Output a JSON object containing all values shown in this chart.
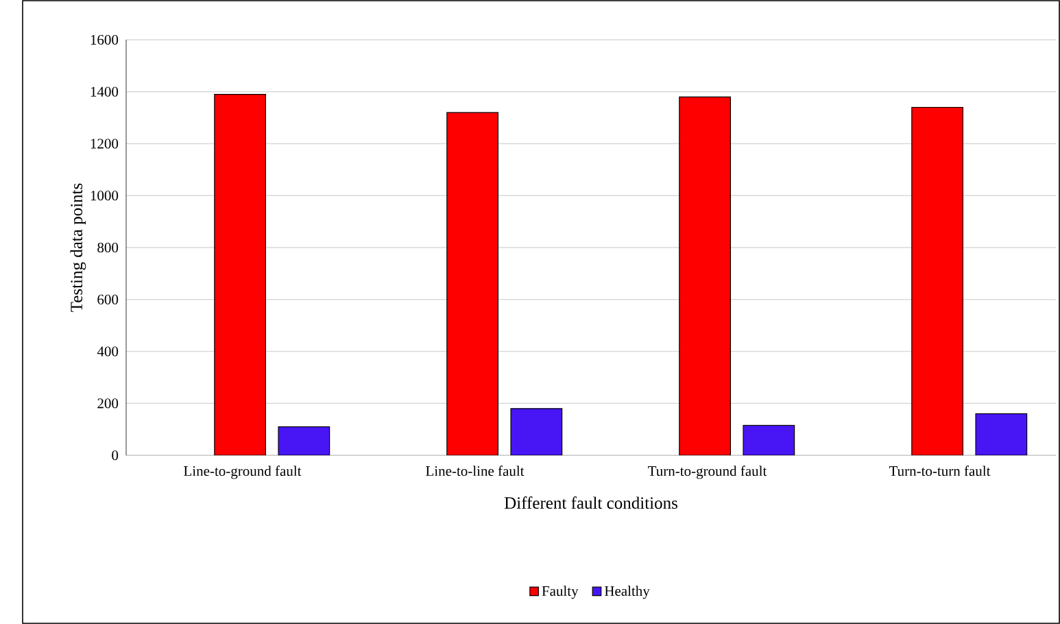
{
  "chart_data": {
    "type": "bar",
    "xlabel": "Different fault conditions",
    "ylabel": "Testing data points",
    "categories": [
      "Line-to-ground fault",
      "Line-to-line fault",
      "Turn-to-ground fault",
      "Turn-to-turn fault"
    ],
    "series": [
      {
        "name": "Faulty",
        "color": "#ff0000",
        "values": [
          1390,
          1320,
          1380,
          1340
        ]
      },
      {
        "name": "Healthy",
        "color": "#4815f5",
        "values": [
          110,
          180,
          115,
          160
        ]
      }
    ],
    "ylim": [
      0,
      1600
    ],
    "yticks": [
      0,
      200,
      400,
      600,
      800,
      1000,
      1200,
      1400,
      1600
    ],
    "grid": "y",
    "legend": "bottom"
  }
}
